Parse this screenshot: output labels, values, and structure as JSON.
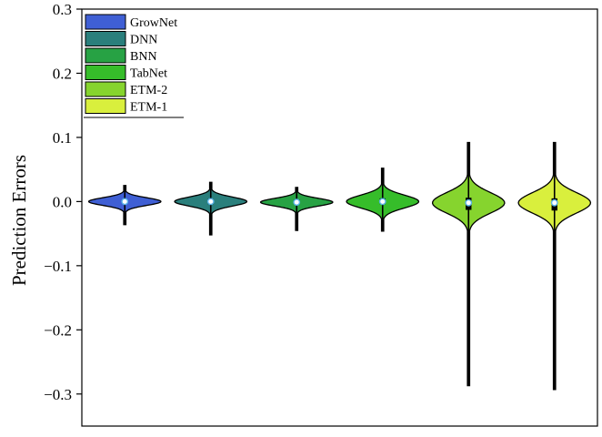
{
  "chart_data": {
    "type": "violin",
    "title": "",
    "xlabel": "",
    "ylabel": "Prediction Errors",
    "ylim": [
      -0.35,
      0.3
    ],
    "yticks": [
      0.3,
      0.2,
      0.1,
      0.0,
      -0.1,
      -0.2,
      -0.3
    ],
    "ytick_labels": [
      "0.3",
      "0.2",
      "0.1",
      "0.0",
      "−0.1",
      "−0.2",
      "−0.3"
    ],
    "xticks": [],
    "grid": false,
    "legend": {
      "placement": "top-left"
    },
    "series": [
      {
        "name": "GrowNet",
        "color": "#3f5fd4",
        "min": -0.036,
        "max": 0.025,
        "q1": -0.003,
        "median": 0.0,
        "q3": 0.003,
        "spread": 0.006
      },
      {
        "name": "DNN",
        "color": "#2a7f7c",
        "min": -0.052,
        "max": 0.03,
        "q1": -0.004,
        "median": 0.0,
        "q3": 0.004,
        "spread": 0.007
      },
      {
        "name": "BNN",
        "color": "#27a244",
        "min": -0.045,
        "max": 0.022,
        "q1": -0.004,
        "median": -0.001,
        "q3": 0.003,
        "spread": 0.006
      },
      {
        "name": "TabNet",
        "color": "#36bd2a",
        "min": -0.046,
        "max": 0.052,
        "q1": -0.004,
        "median": 0.0,
        "q3": 0.005,
        "spread": 0.01
      },
      {
        "name": "ETM-2",
        "color": "#86d42e",
        "min": -0.287,
        "max": 0.092,
        "q1": -0.013,
        "median": -0.002,
        "q3": 0.006,
        "spread": 0.016
      },
      {
        "name": "ETM-1",
        "color": "#d9ef3d",
        "min": -0.293,
        "max": 0.092,
        "q1": -0.014,
        "median": -0.002,
        "q3": 0.005,
        "spread": 0.016
      }
    ]
  }
}
